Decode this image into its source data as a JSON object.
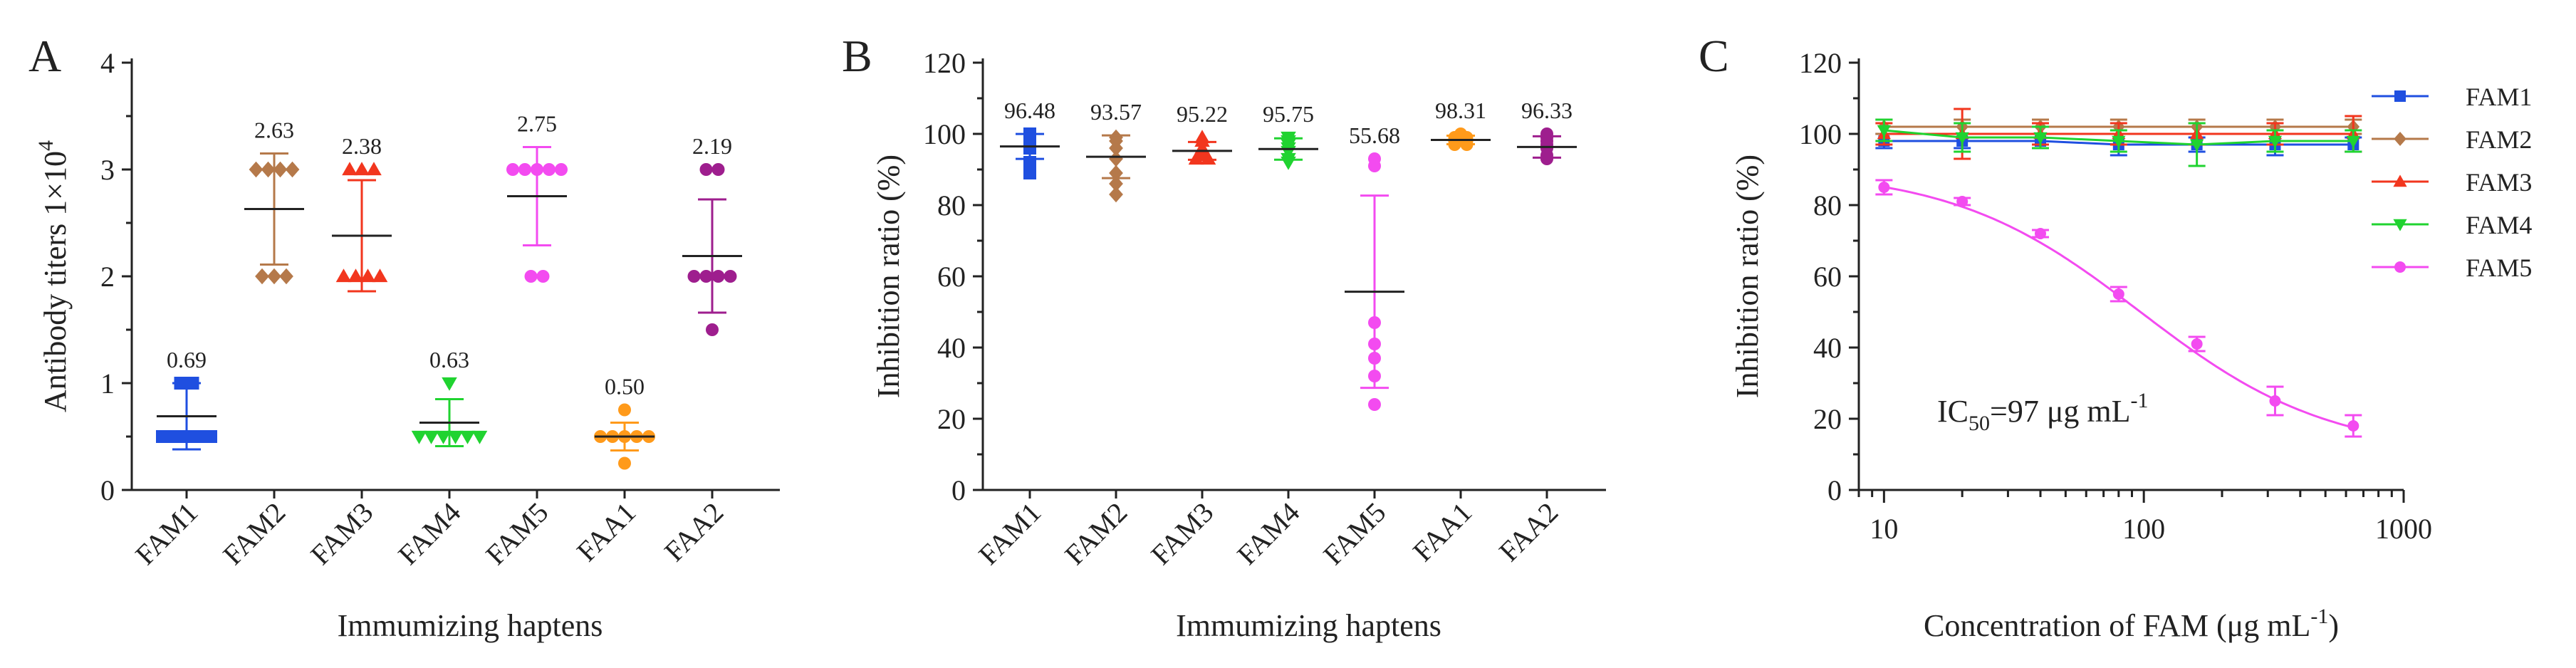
{
  "chart_data": [
    {
      "panel": "A",
      "type": "scatter",
      "ylabel": "Antibody titers 1×10",
      "ylabel_exponent": "4",
      "xlabel": "Immumizing  haptens",
      "ylim": [
        0,
        4
      ],
      "yticks": [
        "0",
        "1",
        "2",
        "3",
        "4"
      ],
      "categories": [
        "FAM1",
        "FAM2",
        "FAM3",
        "FAM4",
        "FAM5",
        "FAA1",
        "FAA2"
      ],
      "marker": [
        "square",
        "diamond",
        "triangle",
        "triangle-down",
        "circle",
        "circle",
        "circle"
      ],
      "colors": [
        "#1f4fe0",
        "#b5794a",
        "#f2361e",
        "#20d330",
        "#f34bf0",
        "#ff9a1a",
        "#9e1e8e"
      ],
      "means": [
        0.69,
        2.63,
        2.38,
        0.63,
        2.75,
        0.5,
        2.19
      ],
      "sd": [
        0.31,
        0.52,
        0.52,
        0.22,
        0.46,
        0.13,
        0.53
      ],
      "mean_labels": [
        "0.69",
        "2.63",
        "2.38",
        "0.63",
        "2.75",
        "0.50",
        "2.19"
      ],
      "points": [
        [
          1,
          1,
          0.5,
          0.5,
          0.5,
          0.5,
          0.5
        ],
        [
          3,
          3,
          3,
          3,
          2,
          2,
          2
        ],
        [
          3,
          3,
          3,
          2,
          2,
          2,
          2
        ],
        [
          1,
          0.5,
          0.5,
          0.5,
          0.5,
          0.5,
          0.5
        ],
        [
          3,
          3,
          3,
          3,
          3,
          2,
          2
        ],
        [
          0.75,
          0.5,
          0.5,
          0.5,
          0.5,
          0.5,
          0.25
        ],
        [
          3,
          3,
          2,
          2,
          2,
          2,
          1.5
        ]
      ]
    },
    {
      "panel": "B",
      "type": "scatter",
      "ylabel": "Inhibition ratio (%)",
      "xlabel": "Immumizing  haptens",
      "ylim": [
        0,
        120
      ],
      "yticks": [
        "0",
        "20",
        "40",
        "60",
        "80",
        "100",
        "120"
      ],
      "categories": [
        "FAM1",
        "FAM2",
        "FAM3",
        "FAM4",
        "FAM5",
        "FAA1",
        "FAA2"
      ],
      "marker": [
        "square",
        "diamond",
        "triangle",
        "triangle-down",
        "circle",
        "circle",
        "circle"
      ],
      "colors": [
        "#1f4fe0",
        "#b5794a",
        "#f2361e",
        "#20d330",
        "#f34bf0",
        "#ff9a1a",
        "#9e1e8e"
      ],
      "means": [
        96.48,
        93.57,
        95.22,
        95.75,
        55.68,
        98.31,
        96.33
      ],
      "sd": [
        3.5,
        6.0,
        2.5,
        3.0,
        27.0,
        1.2,
        3.0
      ],
      "mean_labels": [
        "96.48",
        "93.57",
        "95.22",
        "95.75",
        "55.68",
        "98.31",
        "96.33"
      ],
      "points": [
        [
          100,
          99,
          98,
          97,
          96,
          92,
          89
        ],
        [
          99,
          98,
          96,
          93,
          89,
          86,
          83
        ],
        [
          99,
          98,
          96,
          95,
          94,
          93,
          93
        ],
        [
          99,
          98,
          97,
          96,
          95,
          93,
          92
        ],
        [
          93,
          91,
          47,
          41,
          37,
          32,
          24
        ],
        [
          100,
          99,
          99,
          98,
          98,
          97,
          97
        ],
        [
          100,
          99,
          98,
          97,
          96,
          94,
          93
        ]
      ]
    },
    {
      "panel": "C",
      "type": "line",
      "ylabel": "Inhibition ratio (%)",
      "xlabel_main": "Concentration of FAM (μg mL",
      "xlabel_exp": "-1",
      "xlabel_close": ")",
      "xscale": "log",
      "xlim": [
        8,
        1000
      ],
      "ylim": [
        0,
        120
      ],
      "xticks": [
        "10",
        "100",
        "1000"
      ],
      "xtick_values": [
        10,
        100,
        1000
      ],
      "yticks": [
        "0",
        "20",
        "40",
        "60",
        "80",
        "100",
        "120"
      ],
      "x": [
        10,
        20,
        40,
        80,
        160,
        320,
        640
      ],
      "legend_position": "top-right",
      "annotation": {
        "main": "IC",
        "sub": "50",
        "rest": "=97 μg mL",
        "exp": "-1"
      },
      "series": [
        {
          "name": "FAM1",
          "marker": "square",
          "color": "#1f4fe0",
          "values": [
            98,
            98,
            98,
            97,
            97,
            97,
            97
          ],
          "err": [
            2,
            2,
            2,
            3,
            2,
            3,
            2
          ]
        },
        {
          "name": "FAM2",
          "marker": "diamond",
          "color": "#b5794a",
          "values": [
            102,
            102,
            102,
            102,
            102,
            102,
            102
          ],
          "err": [
            2,
            2,
            2,
            2,
            2,
            2,
            2
          ]
        },
        {
          "name": "FAM3",
          "marker": "triangle",
          "color": "#f2361e",
          "values": [
            100,
            100,
            100,
            100,
            100,
            100,
            100
          ],
          "err": [
            3,
            7,
            3,
            3,
            3,
            3,
            5
          ]
        },
        {
          "name": "FAM4",
          "marker": "triangle-down",
          "color": "#20d330",
          "values": [
            101,
            99,
            99,
            98,
            97,
            98,
            98
          ],
          "err": [
            3,
            4,
            3,
            3,
            6,
            3,
            3
          ]
        },
        {
          "name": "FAM5",
          "marker": "circle",
          "color": "#f34bf0",
          "values": [
            85,
            81,
            72,
            55,
            41,
            25,
            18
          ],
          "err": [
            2,
            1,
            1,
            2,
            2,
            4,
            3
          ],
          "fit": "sigmoid"
        }
      ]
    }
  ]
}
